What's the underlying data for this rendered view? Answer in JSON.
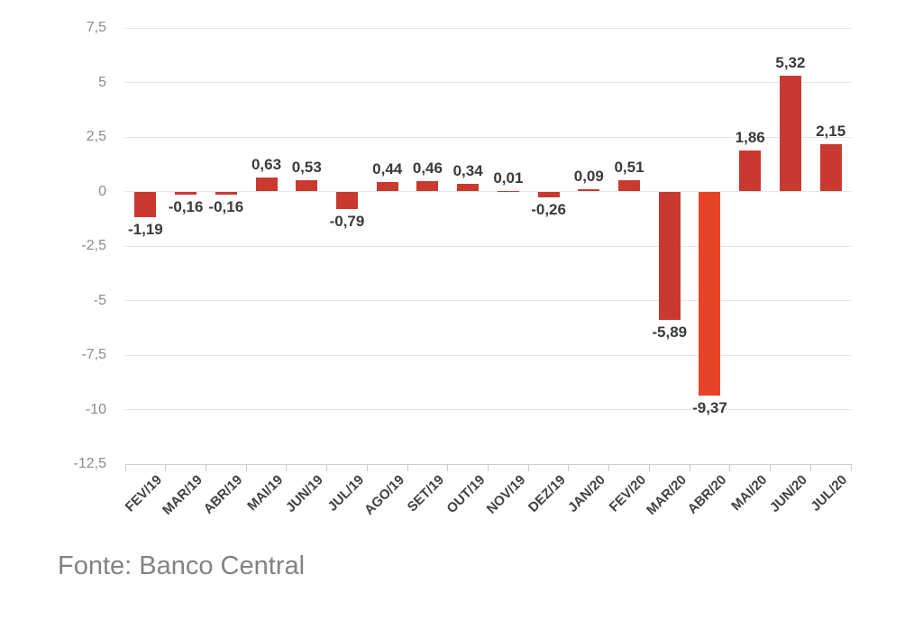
{
  "chart_data": {
    "type": "bar",
    "categories": [
      "FEV/19",
      "MAR/19",
      "ABR/19",
      "MAI/19",
      "JUN/19",
      "JUL/19",
      "AGO/19",
      "SET/19",
      "OUT/19",
      "NOV/19",
      "DEZ/19",
      "JAN/20",
      "FEV/20",
      "MAR/20",
      "ABR/20",
      "MAI/20",
      "JUN/20",
      "JUL/20"
    ],
    "values": [
      -1.19,
      -0.16,
      -0.16,
      0.63,
      0.53,
      -0.79,
      0.44,
      0.46,
      0.34,
      0.01,
      -0.26,
      0.09,
      0.51,
      -5.89,
      -9.37,
      1.86,
      5.32,
      2.15
    ],
    "value_labels": [
      "-1,19",
      "-0,16",
      "-0,16",
      "0,63",
      "0,53",
      "-0,79",
      "0,44",
      "0,46",
      "0,34",
      "0,01",
      "-0,26",
      "0,09",
      "0,51",
      "-5,89",
      "-9,37",
      "1,86",
      "5,32",
      "2,15"
    ],
    "title": "",
    "xlabel": "",
    "ylabel": "",
    "ylim": [
      -12.5,
      7.5
    ],
    "ytick_step": 2.5,
    "ytick_labels": [
      "7,5",
      "5",
      "2,5",
      "0",
      "-2,5",
      "-5",
      "-7,5",
      "-10",
      "-12,5"
    ],
    "grid": true,
    "legend": false,
    "highlight_index": 14,
    "colors": {
      "bar": "#c9392f",
      "bar_highlight": "#e74427",
      "grid": "#e7e7e7",
      "axis": "#cccccc",
      "value_label": "#3a3a3a",
      "y_tick_label": "#8b8b8b",
      "x_tick_label": "#414141"
    }
  },
  "footer": {
    "source_label": "Fonte: Banco Central"
  }
}
